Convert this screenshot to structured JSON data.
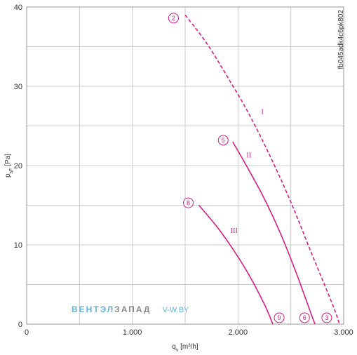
{
  "chart_data": {
    "type": "line",
    "xlabel": "q",
    "xlabel_sub": "v",
    "xlabel_unit": " [m³/h]",
    "ylabel": "p",
    "ylabel_sub": "sF",
    "ylabel_unit": " [Pa]",
    "xlim": [
      0,
      3000
    ],
    "ylim": [
      0,
      40
    ],
    "x_ticks": [
      {
        "value": 0,
        "label": "0"
      },
      {
        "value": 1000,
        "label": "1.000"
      },
      {
        "value": 2000,
        "label": "2.000"
      },
      {
        "value": 3000,
        "label": "3.000"
      }
    ],
    "y_ticks": [
      {
        "value": 0,
        "label": "0"
      },
      {
        "value": 10,
        "label": "10"
      },
      {
        "value": 20,
        "label": "20"
      },
      {
        "value": 30,
        "label": "30"
      },
      {
        "value": 40,
        "label": "40"
      }
    ],
    "x_grid": [
      0,
      500,
      1000,
      1500,
      2000,
      2500,
      3000
    ],
    "y_grid": [
      0,
      5,
      10,
      15,
      20,
      25,
      30,
      35,
      40
    ],
    "grid": true,
    "series": [
      {
        "name": "I",
        "dashed": true,
        "color": "#d61f85",
        "x": [
          1500,
          1700,
          1900,
          2100,
          2300,
          2500,
          2700,
          2900,
          2960
        ],
        "y": [
          39,
          35.5,
          31.2,
          26.6,
          21.3,
          15.4,
          8.8,
          2.3,
          0
        ]
      },
      {
        "name": "II",
        "dashed": false,
        "color": "#d61f85",
        "x": [
          1950,
          2100,
          2250,
          2400,
          2550,
          2700,
          2730
        ],
        "y": [
          23,
          19.5,
          15.8,
          11.5,
          6.5,
          1.0,
          0
        ]
      },
      {
        "name": "III",
        "dashed": false,
        "color": "#d61f85",
        "x": [
          1630,
          1800,
          1950,
          2100,
          2250,
          2330
        ],
        "y": [
          15,
          12.3,
          9.5,
          6.3,
          2.5,
          0
        ]
      }
    ],
    "curve_labels": [
      {
        "text": "I",
        "x": 2220,
        "y": 26.5
      },
      {
        "text": "II",
        "x": 2080,
        "y": 21
      },
      {
        "text": "III",
        "x": 1930,
        "y": 11.5
      }
    ],
    "markers": [
      {
        "text": "2",
        "x": 1390,
        "y": 38.6
      },
      {
        "text": "5",
        "x": 1860,
        "y": 23.2
      },
      {
        "text": "8",
        "x": 1530,
        "y": 15.3
      },
      {
        "text": "9",
        "x": 2390,
        "y": 0.8
      },
      {
        "text": "6",
        "x": 2630,
        "y": 0.8
      },
      {
        "text": "3",
        "x": 2840,
        "y": 0.8
      }
    ],
    "figure_code": "fb045adk4c6pk802"
  },
  "watermark": {
    "part1": "ВЕНТЭЛ",
    "part2": "ЗАПАД",
    "url": "V-W.BY"
  },
  "colors": {
    "accent": "#d61f85",
    "grid": "#cccccc",
    "axis": "#999999"
  }
}
